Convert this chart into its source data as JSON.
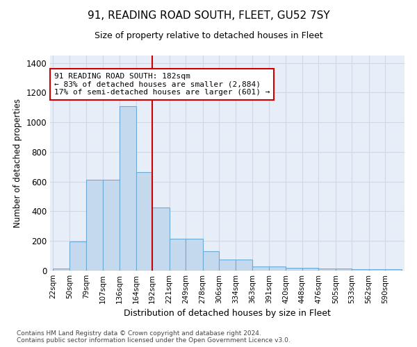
{
  "title": "91, READING ROAD SOUTH, FLEET, GU52 7SY",
  "subtitle": "Size of property relative to detached houses in Fleet",
  "xlabel": "Distribution of detached houses by size in Fleet",
  "ylabel": "Number of detached properties",
  "bar_color": "#c5d9ee",
  "bar_edge_color": "#6aaad4",
  "grid_color": "#d0d8e8",
  "bg_color": "#e8eef8",
  "vline_x": 192,
  "vline_color": "#cc0000",
  "categories": [
    "22sqm",
    "50sqm",
    "79sqm",
    "107sqm",
    "136sqm",
    "164sqm",
    "192sqm",
    "221sqm",
    "249sqm",
    "278sqm",
    "306sqm",
    "334sqm",
    "363sqm",
    "391sqm",
    "420sqm",
    "448sqm",
    "476sqm",
    "505sqm",
    "533sqm",
    "562sqm",
    "590sqm"
  ],
  "bin_edges": [
    22,
    50,
    79,
    107,
    136,
    164,
    192,
    221,
    249,
    278,
    306,
    334,
    363,
    391,
    420,
    448,
    476,
    505,
    533,
    562,
    590
  ],
  "values": [
    15,
    195,
    615,
    615,
    1110,
    665,
    425,
    215,
    215,
    130,
    75,
    75,
    30,
    30,
    20,
    20,
    12,
    12,
    10,
    10,
    10
  ],
  "ylim": [
    0,
    1450
  ],
  "yticks": [
    0,
    200,
    400,
    600,
    800,
    1000,
    1200,
    1400
  ],
  "annotation_text": "91 READING ROAD SOUTH: 182sqm\n← 83% of detached houses are smaller (2,884)\n17% of semi-detached houses are larger (601) →",
  "annotation_box_color": "#ffffff",
  "annotation_box_edge": "#cc0000",
  "footnote": "Contains HM Land Registry data © Crown copyright and database right 2024.\nContains public sector information licensed under the Open Government Licence v3.0."
}
